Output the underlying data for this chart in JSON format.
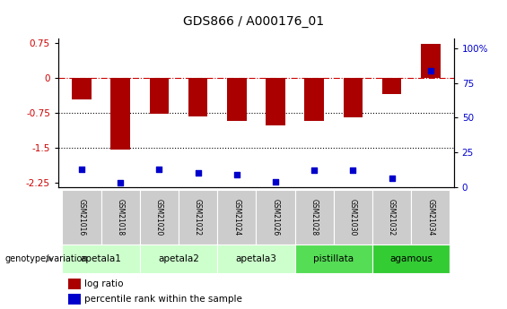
{
  "title": "GDS866 / A000176_01",
  "samples": [
    "GSM21016",
    "GSM21018",
    "GSM21020",
    "GSM21022",
    "GSM21024",
    "GSM21026",
    "GSM21028",
    "GSM21030",
    "GSM21032",
    "GSM21034"
  ],
  "log_ratio": [
    -0.47,
    -1.54,
    -0.78,
    -0.82,
    -0.92,
    -1.02,
    -0.92,
    -0.85,
    -0.34,
    0.73
  ],
  "percentile_rank": [
    13,
    3,
    13,
    10,
    9,
    4,
    12,
    12,
    6,
    84
  ],
  "ylim_left": [
    -2.35,
    0.85
  ],
  "ylim_right": [
    0,
    107
  ],
  "yticks_left": [
    0.75,
    0,
    -0.75,
    -1.5,
    -2.25
  ],
  "yticks_right": [
    100,
    75,
    50,
    25,
    0
  ],
  "bar_color": "#aa0000",
  "point_color": "#0000cc",
  "sample_box_color": "#cccccc",
  "groups": [
    {
      "label": "apetala1",
      "samples": [
        "GSM21016",
        "GSM21018"
      ],
      "color": "#ccffcc"
    },
    {
      "label": "apetala2",
      "samples": [
        "GSM21020",
        "GSM21022"
      ],
      "color": "#ccffcc"
    },
    {
      "label": "apetala3",
      "samples": [
        "GSM21024",
        "GSM21026"
      ],
      "color": "#ccffcc"
    },
    {
      "label": "pistillata",
      "samples": [
        "GSM21028",
        "GSM21030"
      ],
      "color": "#55dd55"
    },
    {
      "label": "agamous",
      "samples": [
        "GSM21032",
        "GSM21034"
      ],
      "color": "#33cc33"
    }
  ],
  "group_header": "genotype/variation",
  "legend_items": [
    {
      "label": "log ratio",
      "color": "#aa0000"
    },
    {
      "label": "percentile rank within the sample",
      "color": "#0000cc"
    }
  ],
  "fig_width": 5.65,
  "fig_height": 3.45,
  "dpi": 100
}
